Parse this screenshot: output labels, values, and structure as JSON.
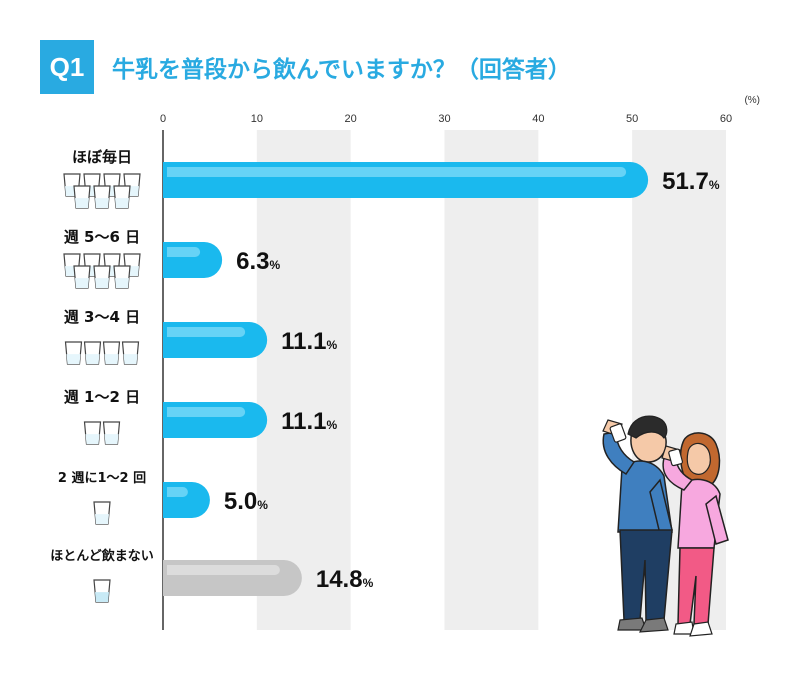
{
  "header": {
    "badge": "Q1",
    "title": "牛乳を普段から飲んでいますか？（回答者）"
  },
  "chart_data": {
    "type": "bar",
    "orientation": "horizontal",
    "unit": "(%)",
    "value_suffix": "%",
    "xlim": [
      0,
      60
    ],
    "ticks": [
      0,
      10,
      20,
      30,
      40,
      50,
      60
    ],
    "categories": [
      "ほぼ毎日",
      "週 5〜6 日",
      "週 3〜4 日",
      "週 1〜2 日",
      "2 週に1〜2 回",
      "ほとんど飲まない"
    ],
    "values": [
      51.7,
      6.3,
      11.1,
      11.1,
      5.0,
      14.8
    ],
    "value_labels": [
      "51.7",
      "6.3",
      "11.1",
      "11.1",
      "5.0",
      "14.8"
    ],
    "glass_counts": [
      7,
      7,
      4,
      2,
      1,
      1
    ],
    "colors": {
      "bar": "#1ab9ee",
      "bar_highlight": "#66d3f6",
      "bar_none": "#c6c6c6",
      "bar_none_highlight": "#dcdcdc",
      "band": "#eeeeee",
      "accent": "#29aae1"
    },
    "grid": "alternating bands"
  }
}
